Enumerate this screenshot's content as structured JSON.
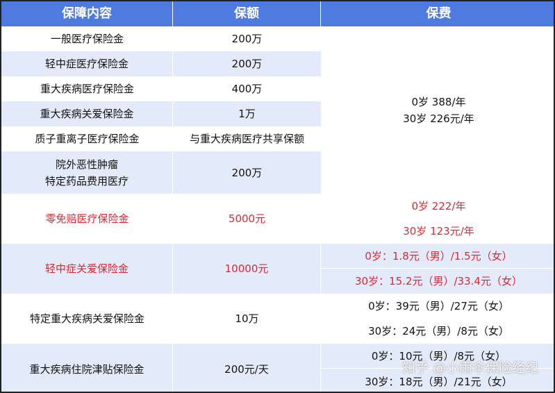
{
  "headers": [
    "保障内容",
    "保额",
    "保费"
  ],
  "rows": [
    {
      "item": "一般医疗保险金",
      "amount": "200万"
    },
    {
      "item": "轻中症医疗保险金",
      "amount": "200万"
    },
    {
      "item": "重大疾病医疗保险金",
      "amount": "400万"
    },
    {
      "item": "重大疾病关爱保险金",
      "amount": "1万"
    },
    {
      "item": "质子重离子医疗保险金",
      "amount": "与重大疾病医疗共享保额"
    },
    {
      "item": "院外恶性肿瘤\n特定药品费用医疗",
      "item_line1": "院外恶性肿瘤",
      "item_line2": "特定药品费用医疗",
      "amount": "200万"
    },
    {
      "item": "零免赔医疗保险金",
      "amount": "5000元"
    },
    {
      "item": "轻中症关爱保险金",
      "amount": "10000元"
    },
    {
      "item": "特定重大疾病关爱保险金",
      "amount": "10万"
    },
    {
      "item": "重大疾病住院津贴保险金",
      "amount": "200元/天"
    }
  ],
  "premiums": {
    "main": [
      "0岁 388/年",
      "30岁 226元/年"
    ],
    "zero_deductible": [
      "0岁 222/年",
      "30岁 123元/年"
    ],
    "mild_care": [
      "0岁：1.8元（男）/1.5元（女）",
      "30岁：15.2元（男）/33.4元（女）"
    ],
    "critical_care": [
      "0岁：39元（男）/27元（女）",
      "30岁：24元（男）/8元（女）"
    ],
    "allowance": [
      "0岁：10元（男）/8元（女）",
      "30岁：18元（男）/21元（女）"
    ]
  },
  "watermark": "知乎 @小雨伞保险经纪",
  "colors": {
    "header": "#4f7ae0",
    "stripe": "#e3eaf9",
    "highlight": "#e0262f"
  }
}
